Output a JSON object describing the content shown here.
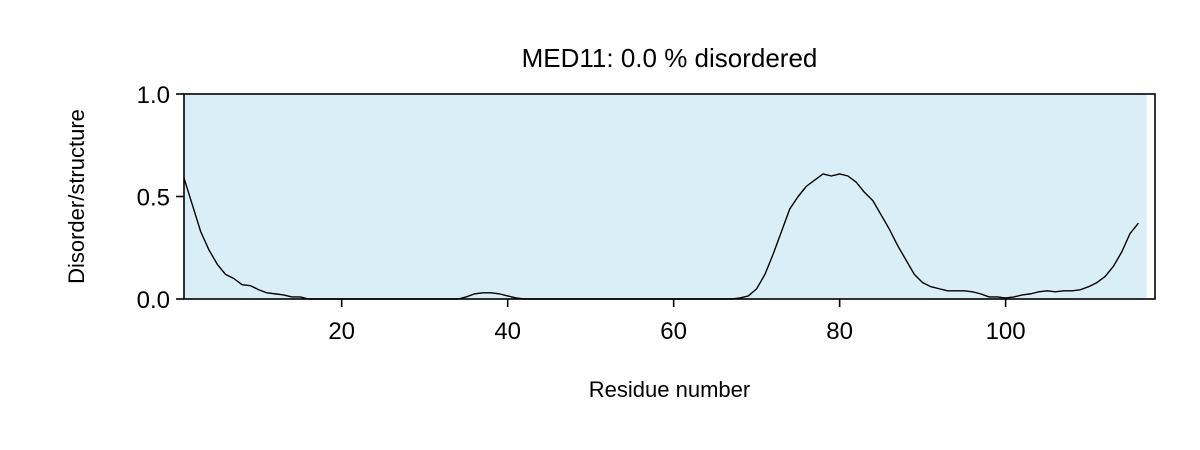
{
  "chart_data": {
    "type": "line",
    "title": "MED11: 0.0 % disordered",
    "xlabel": "Residue number",
    "ylabel": "Disorder/structure",
    "xlim": [
      1,
      118
    ],
    "ylim": [
      0,
      1
    ],
    "xticks": [
      20,
      40,
      60,
      80,
      100
    ],
    "yticks": [
      0.0,
      0.5,
      1.0
    ],
    "ytick_labels": [
      "0.0",
      "0.5",
      "1.0"
    ],
    "grid": false,
    "background_region": {
      "from": 1,
      "to": 117,
      "color": "#d9eef7"
    },
    "line_color": "#000000",
    "series": [
      {
        "x": [
          1,
          2,
          3,
          4,
          5,
          6,
          7,
          8,
          9,
          10,
          11,
          12,
          13,
          14,
          15,
          16,
          17,
          18,
          19,
          20,
          21,
          22,
          23,
          24,
          25,
          26,
          27,
          28,
          29,
          30,
          31,
          32,
          33,
          34,
          35,
          36,
          37,
          38,
          39,
          40,
          41,
          42,
          43,
          44,
          45,
          46,
          47,
          48,
          49,
          50,
          51,
          52,
          53,
          54,
          55,
          56,
          57,
          58,
          59,
          60,
          61,
          62,
          63,
          64,
          65,
          66,
          67,
          68,
          69,
          70,
          71,
          72,
          73,
          74,
          75,
          76,
          77,
          78,
          79,
          80,
          81,
          82,
          83,
          84,
          85,
          86,
          87,
          88,
          89,
          90,
          91,
          92,
          93,
          94,
          95,
          96,
          97,
          98,
          99,
          100,
          101,
          102,
          103,
          104,
          105,
          106,
          107,
          108,
          109,
          110,
          111,
          112,
          113,
          114,
          115,
          116
        ],
        "values": [
          0.59,
          0.46,
          0.33,
          0.24,
          0.17,
          0.12,
          0.1,
          0.07,
          0.065,
          0.045,
          0.03,
          0.025,
          0.02,
          0.01,
          0.01,
          0.0,
          0.0,
          0.0,
          0.0,
          0.0,
          0.0,
          0.0,
          0.0,
          0.0,
          0.0,
          0.0,
          0.0,
          0.0,
          0.0,
          0.0,
          0.0,
          0.0,
          0.0,
          0.0,
          0.01,
          0.025,
          0.03,
          0.03,
          0.025,
          0.015,
          0.005,
          0.0,
          0.0,
          0.0,
          0.0,
          0.0,
          0.0,
          0.0,
          0.0,
          0.0,
          0.0,
          0.0,
          0.0,
          0.0,
          0.0,
          0.0,
          0.0,
          0.0,
          0.0,
          0.0,
          0.0,
          0.0,
          0.0,
          0.0,
          0.0,
          0.0,
          0.0,
          0.005,
          0.015,
          0.05,
          0.12,
          0.22,
          0.33,
          0.44,
          0.5,
          0.55,
          0.58,
          0.61,
          0.6,
          0.61,
          0.6,
          0.57,
          0.52,
          0.48,
          0.41,
          0.34,
          0.26,
          0.19,
          0.12,
          0.08,
          0.06,
          0.05,
          0.04,
          0.04,
          0.04,
          0.035,
          0.025,
          0.01,
          0.01,
          0.005,
          0.01,
          0.02,
          0.025,
          0.035,
          0.04,
          0.035,
          0.04,
          0.04,
          0.045,
          0.06,
          0.08,
          0.11,
          0.16,
          0.23,
          0.32,
          0.37
        ]
      }
    ]
  }
}
